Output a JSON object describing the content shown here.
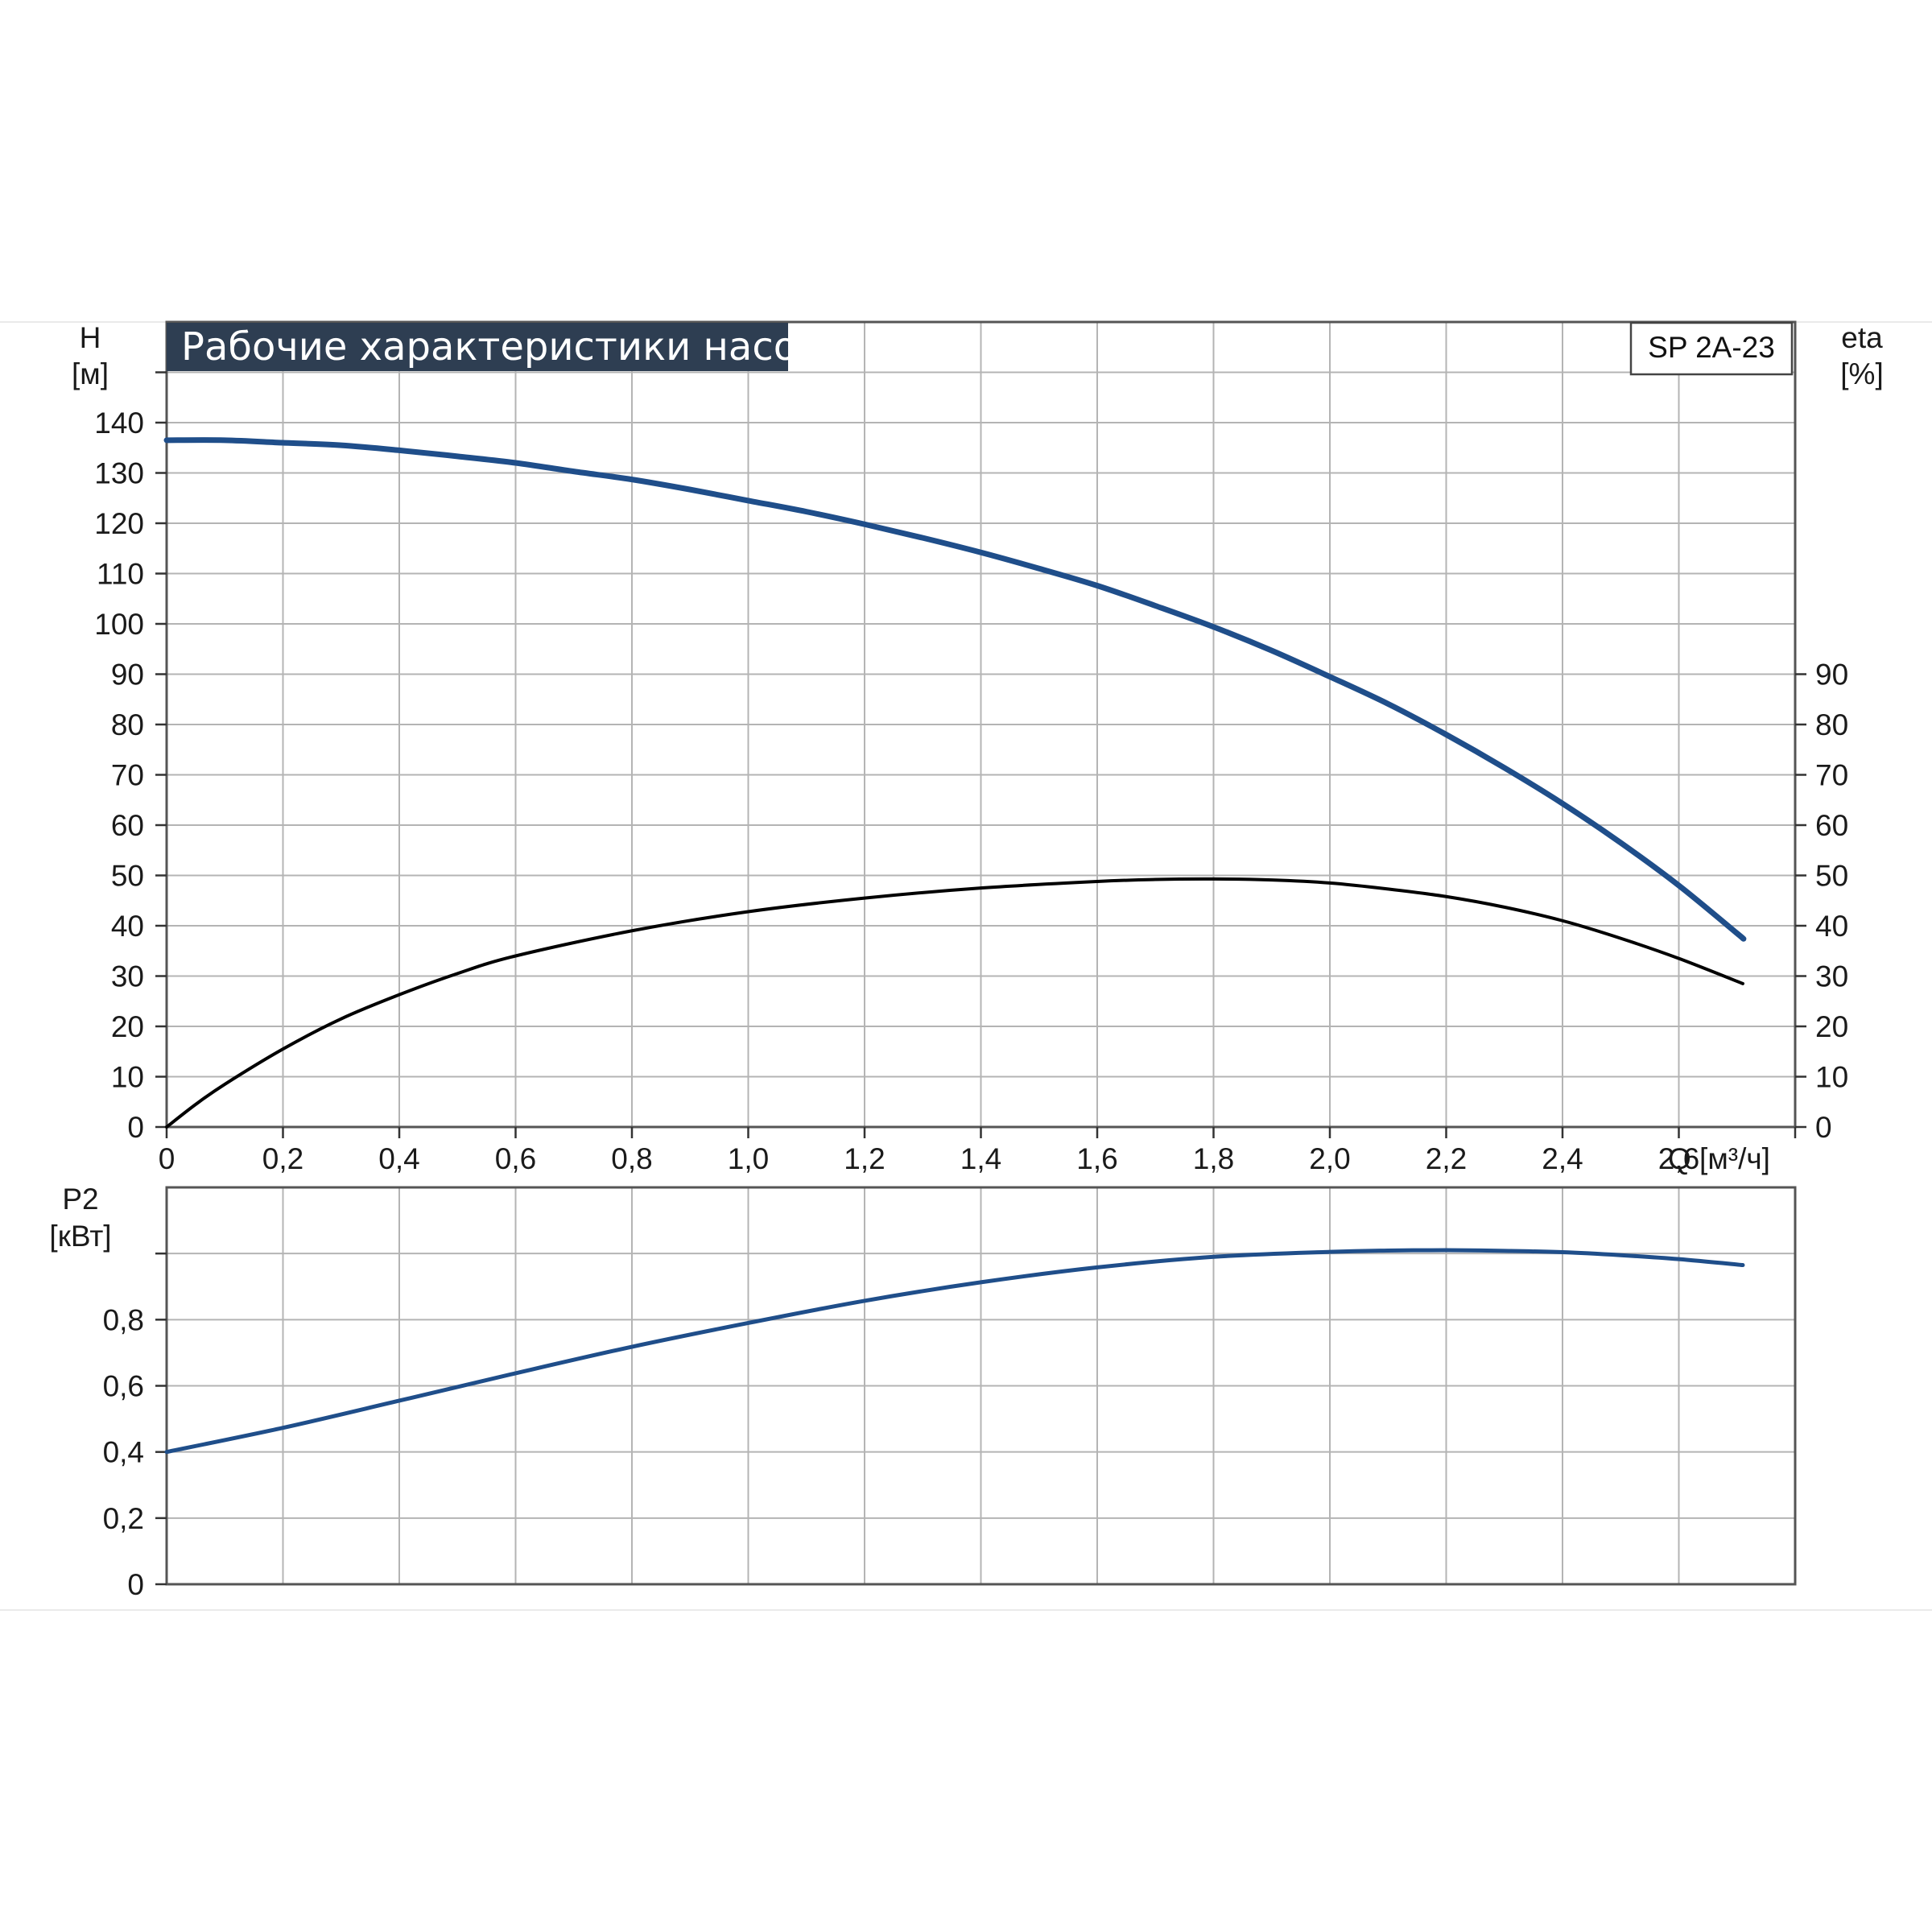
{
  "title": "Рабочие характеристики насоса",
  "model": "SP 2A-23",
  "colors": {
    "head": "#1f4e8a",
    "eta": "#000000",
    "power": "#1f4e8a",
    "title_bg": "#2e3e52",
    "grid": "#b4b4b4"
  },
  "chart_data": [
    {
      "type": "line",
      "title": "Рабочие характеристики насоса",
      "xlabel": "Q [м³/ч]",
      "x_tick_labels": [
        "0",
        "0,2",
        "0,4",
        "0,6",
        "0,8",
        "1,0",
        "1,2",
        "1,4",
        "1,6",
        "1,8",
        "2,0",
        "2,2",
        "2,4",
        "2,6"
      ],
      "xlim": [
        0,
        2.8
      ],
      "ylabel_left": {
        "symbol": "H",
        "unit": "[м]"
      },
      "ylim_left": [
        0,
        160
      ],
      "y_tick_labels_left": [
        "0",
        "10",
        "20",
        "30",
        "40",
        "50",
        "60",
        "70",
        "80",
        "90",
        "100",
        "110",
        "120",
        "130",
        "140"
      ],
      "ylabel_right": {
        "symbol": "eta",
        "unit": "[%]"
      },
      "ylim_right": [
        0,
        160
      ],
      "y_tick_labels_right": [
        "0",
        "10",
        "20",
        "30",
        "40",
        "50",
        "60",
        "70",
        "80",
        "90"
      ],
      "grid": true,
      "series": [
        {
          "axis": "left",
          "x": [
            0,
            0.1,
            0.2,
            0.3,
            0.4,
            0.5,
            0.6,
            0.7,
            0.8,
            0.9,
            1.0,
            1.1,
            1.2,
            1.3,
            1.4,
            1.5,
            1.6,
            1.7,
            1.8,
            1.9,
            2.0,
            2.1,
            2.2,
            2.3,
            2.4,
            2.5,
            2.6,
            2.7,
            2.71
          ],
          "values": [
            136.5,
            136.5,
            136,
            135.5,
            134.5,
            133.3,
            132,
            130.3,
            128.7,
            126.7,
            124.5,
            122.3,
            119.8,
            117.1,
            114.2,
            111,
            107.6,
            103.6,
            99.4,
            94.7,
            89.5,
            84.1,
            78,
            71.4,
            64.3,
            56.5,
            48,
            38.5,
            37.5
          ]
        },
        {
          "axis": "right",
          "x": [
            0,
            0.05,
            0.1,
            0.2,
            0.3,
            0.4,
            0.5,
            0.6,
            0.8,
            1.0,
            1.2,
            1.4,
            1.6,
            1.7,
            1.8,
            1.9,
            2.0,
            2.1,
            2.2,
            2.3,
            2.4,
            2.5,
            2.6,
            2.71
          ],
          "values": [
            0,
            4.5,
            8.5,
            15.5,
            21.5,
            26.3,
            30.5,
            34,
            39,
            42.8,
            45.5,
            47.5,
            48.8,
            49.2,
            49.3,
            49.1,
            48.5,
            47.3,
            45.8,
            43.7,
            41,
            37.5,
            33.5,
            28.5
          ]
        }
      ]
    },
    {
      "type": "line",
      "xlim": [
        0,
        2.8
      ],
      "ylabel": {
        "symbol": "P2",
        "unit": "[кВт]"
      },
      "ylim": [
        0,
        1.2
      ],
      "y_tick_labels": [
        "0",
        "0,2",
        "0,4",
        "0,6",
        "0,8"
      ],
      "grid": true,
      "series": [
        {
          "x": [
            0,
            0.2,
            0.4,
            0.6,
            0.8,
            1.0,
            1.2,
            1.4,
            1.6,
            1.8,
            2.0,
            2.1,
            2.2,
            2.3,
            2.4,
            2.5,
            2.6,
            2.71
          ],
          "values": [
            0.4,
            0.473,
            0.555,
            0.638,
            0.718,
            0.79,
            0.857,
            0.913,
            0.958,
            0.99,
            1.005,
            1.009,
            1.01,
            1.008,
            1.004,
            0.995,
            0.983,
            0.965
          ]
        }
      ]
    }
  ]
}
